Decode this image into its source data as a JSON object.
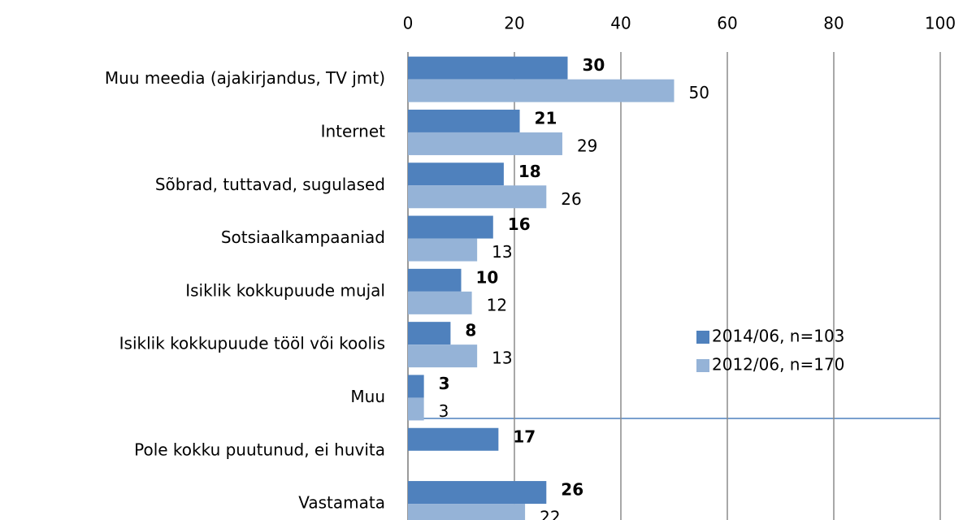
{
  "chart_data": {
    "type": "hbar",
    "categories": [
      "Muu meedia (ajakirjandus, TV jmt)",
      "Internet",
      "Sõbrad, tuttavad, sugulased",
      "Sotsiaalkampaaniad",
      "Isiklik kokkupuude mujal",
      "Isiklik kokkupuude tööl või koolis",
      "Muu",
      "Pole kokku puutunud,  ei huvita",
      "Vastamata"
    ],
    "series": [
      {
        "name": "2014/06, n=103",
        "color": "#4f81bd",
        "values": [
          30,
          21,
          18,
          16,
          10,
          8,
          3,
          17,
          26
        ]
      },
      {
        "name": "2012/06, n=170",
        "color": "#95b3d7",
        "values": [
          50,
          29,
          26,
          13,
          12,
          13,
          3,
          null,
          22
        ]
      }
    ],
    "xlim": [
      0,
      100
    ],
    "xticks": [
      0,
      20,
      40,
      60,
      80,
      100
    ],
    "grid": true,
    "legend": "lower right"
  }
}
